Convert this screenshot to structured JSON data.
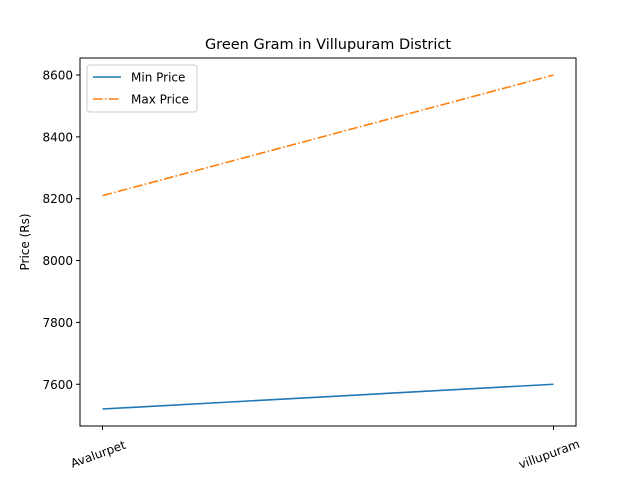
{
  "chart_data": {
    "type": "line",
    "title": "Green Gram in Villupuram District",
    "xlabel": "",
    "ylabel": "Price (Rs)",
    "categories": [
      "Avalurpet",
      "villupuram"
    ],
    "series": [
      {
        "name": "Min Price",
        "values": [
          7520,
          7600
        ],
        "color": "#1f77b4",
        "style": "solid"
      },
      {
        "name": "Max Price",
        "values": [
          8210,
          8600
        ],
        "color": "#ff7f0e",
        "style": "dashdot"
      }
    ],
    "ylim": [
      7465,
      8655
    ],
    "yticks": [
      7600,
      7800,
      8000,
      8200,
      8400,
      8600
    ],
    "grid": false,
    "legend": "upper-left"
  }
}
